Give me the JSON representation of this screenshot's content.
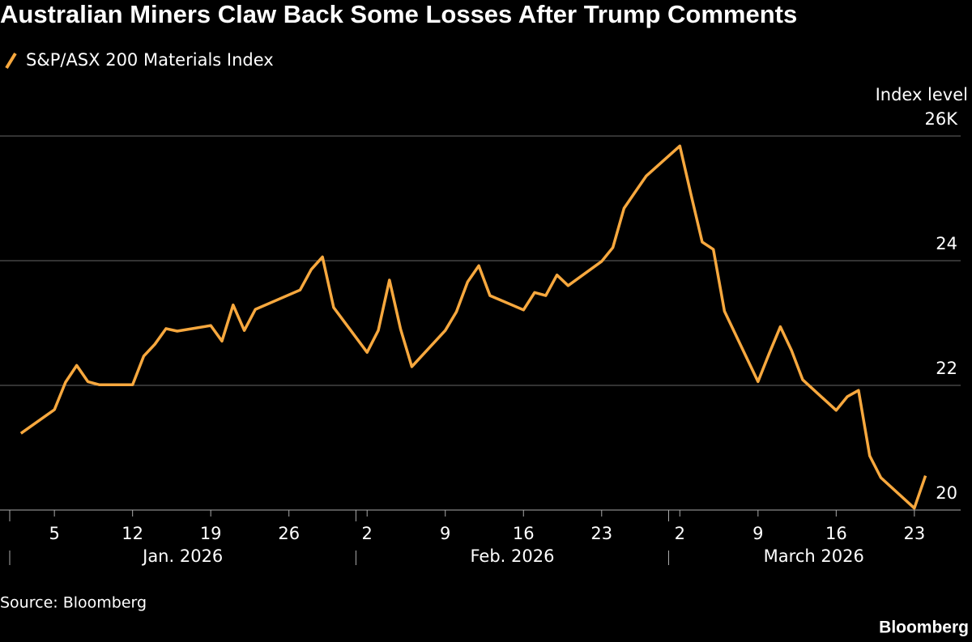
{
  "chart_data": {
    "type": "line",
    "title": "Australian Miners Claw Back Some Losses After Trump Comments",
    "y_label": "Index level",
    "source": "Source: Bloomberg",
    "brand": "Bloomberg",
    "x": [
      "2026-01-02",
      "2026-01-05",
      "2026-01-06",
      "2026-01-07",
      "2026-01-08",
      "2026-01-09",
      "2026-01-12",
      "2026-01-13",
      "2026-01-14",
      "2026-01-15",
      "2026-01-16",
      "2026-01-19",
      "2026-01-20",
      "2026-01-21",
      "2026-01-22",
      "2026-01-23",
      "2026-01-27",
      "2026-01-28",
      "2026-01-29",
      "2026-01-30",
      "2026-02-02",
      "2026-02-03",
      "2026-02-04",
      "2026-02-05",
      "2026-02-06",
      "2026-02-09",
      "2026-02-10",
      "2026-02-11",
      "2026-02-12",
      "2026-02-13",
      "2026-02-16",
      "2026-02-17",
      "2026-02-18",
      "2026-02-19",
      "2026-02-20",
      "2026-02-23",
      "2026-02-24",
      "2026-02-25",
      "2026-02-26",
      "2026-02-27",
      "2026-03-02",
      "2026-03-03",
      "2026-03-04",
      "2026-03-05",
      "2026-03-06",
      "2026-03-09",
      "2026-03-10",
      "2026-03-11",
      "2026-03-12",
      "2026-03-13",
      "2026-03-16",
      "2026-03-17",
      "2026-03-18",
      "2026-03-19",
      "2026-03-20",
      "2026-03-23",
      "2026-03-24"
    ],
    "series": [
      {
        "name": "S&P/ASX 200 Materials Index",
        "color": "#f7a83e",
        "values": [
          21.23,
          21.61,
          22.05,
          22.32,
          22.06,
          22.01,
          22.01,
          22.47,
          22.66,
          22.91,
          22.87,
          22.96,
          22.71,
          23.29,
          22.88,
          23.22,
          23.53,
          23.86,
          24.06,
          23.25,
          22.53,
          22.88,
          23.69,
          22.9,
          22.3,
          22.88,
          23.18,
          23.66,
          23.92,
          23.44,
          23.21,
          23.49,
          23.44,
          23.77,
          23.6,
          23.99,
          24.21,
          24.84,
          25.1,
          25.36,
          25.84,
          25.06,
          24.3,
          24.18,
          23.19,
          22.06,
          22.51,
          22.94,
          22.56,
          22.09,
          21.6,
          21.82,
          21.92,
          20.87,
          20.52,
          20.03,
          20.55
        ]
      }
    ],
    "xlim": [
      "2026-01-01",
      "2026-03-27"
    ],
    "xticks": [
      {
        "value": "2026-01-05",
        "label": "5"
      },
      {
        "value": "2026-01-12",
        "label": "12"
      },
      {
        "value": "2026-01-19",
        "label": "19"
      },
      {
        "value": "2026-01-26",
        "label": "26"
      },
      {
        "value": "2026-02-02",
        "label": "2"
      },
      {
        "value": "2026-02-09",
        "label": "9"
      },
      {
        "value": "2026-02-16",
        "label": "16"
      },
      {
        "value": "2026-02-23",
        "label": "23"
      },
      {
        "value": "2026-03-02",
        "label": "2"
      },
      {
        "value": "2026-03-09",
        "label": "9"
      },
      {
        "value": "2026-03-16",
        "label": "16"
      },
      {
        "value": "2026-03-23",
        "label": "23"
      }
    ],
    "months": [
      {
        "value": "2026-01-01",
        "label": "Jan. 2026"
      },
      {
        "value": "2026-02-01",
        "label": "Feb. 2026"
      },
      {
        "value": "2026-03-01",
        "label": "March 2026"
      }
    ],
    "ylim": [
      20,
      26
    ],
    "yticks": [
      20,
      22,
      24,
      {
        "value": 26,
        "label": "26K"
      }
    ],
    "grid": true
  }
}
